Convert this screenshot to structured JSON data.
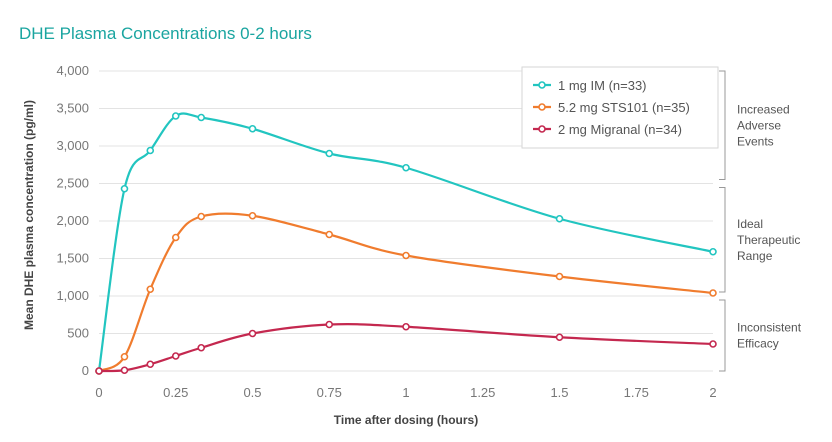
{
  "chart_data": {
    "type": "line",
    "title": "DHE Plasma Concentrations 0-2 hours",
    "xlabel": "Time after dosing (hours)",
    "ylabel": "Mean DHE plasma concentration (pg/ml)",
    "xlim": [
      0,
      2
    ],
    "ylim": [
      0,
      4000
    ],
    "x_ticks": [
      "0",
      "0.25",
      "0.5",
      "0.75",
      "1",
      "1.25",
      "1.5",
      "1.75",
      "2"
    ],
    "y_ticks": [
      "0",
      "500",
      "1,000",
      "1,500",
      "2,000",
      "2,500",
      "3,000",
      "3,500",
      "4,000"
    ],
    "grid": "horizontal",
    "legend_position": "top-right",
    "series": [
      {
        "name": "1 mg IM (n=33)",
        "color": "#22c5c0",
        "x": [
          0,
          0.083,
          0.167,
          0.25,
          0.333,
          0.5,
          0.75,
          1,
          1.5,
          2
        ],
        "y": [
          0,
          2430,
          2940,
          3400,
          3380,
          3230,
          2900,
          2710,
          2030,
          1590
        ]
      },
      {
        "name": "5.2 mg STS101 (n=35)",
        "color": "#f07c2e",
        "x": [
          0,
          0.083,
          0.167,
          0.25,
          0.333,
          0.5,
          0.75,
          1,
          1.5,
          2
        ],
        "y": [
          0,
          190,
          1090,
          1780,
          2060,
          2070,
          1820,
          1540,
          1260,
          1040
        ]
      },
      {
        "name": "2 mg Migranal (n=34)",
        "color": "#c4284f",
        "x": [
          0,
          0.083,
          0.167,
          0.25,
          0.333,
          0.5,
          0.75,
          1,
          1.5,
          2
        ],
        "y": [
          0,
          10,
          90,
          200,
          310,
          500,
          620,
          590,
          450,
          360
        ]
      }
    ],
    "bands": [
      {
        "label_lines": [
          "Increased",
          "Adverse",
          "Events"
        ],
        "from": 2500,
        "to": 4000
      },
      {
        "label_lines": [
          "Ideal",
          "Therapeutic",
          "Range"
        ],
        "from": 1000,
        "to": 2500
      },
      {
        "label_lines": [
          "Inconsistent",
          "Efficacy"
        ],
        "from": 0,
        "to": 1000
      }
    ]
  }
}
